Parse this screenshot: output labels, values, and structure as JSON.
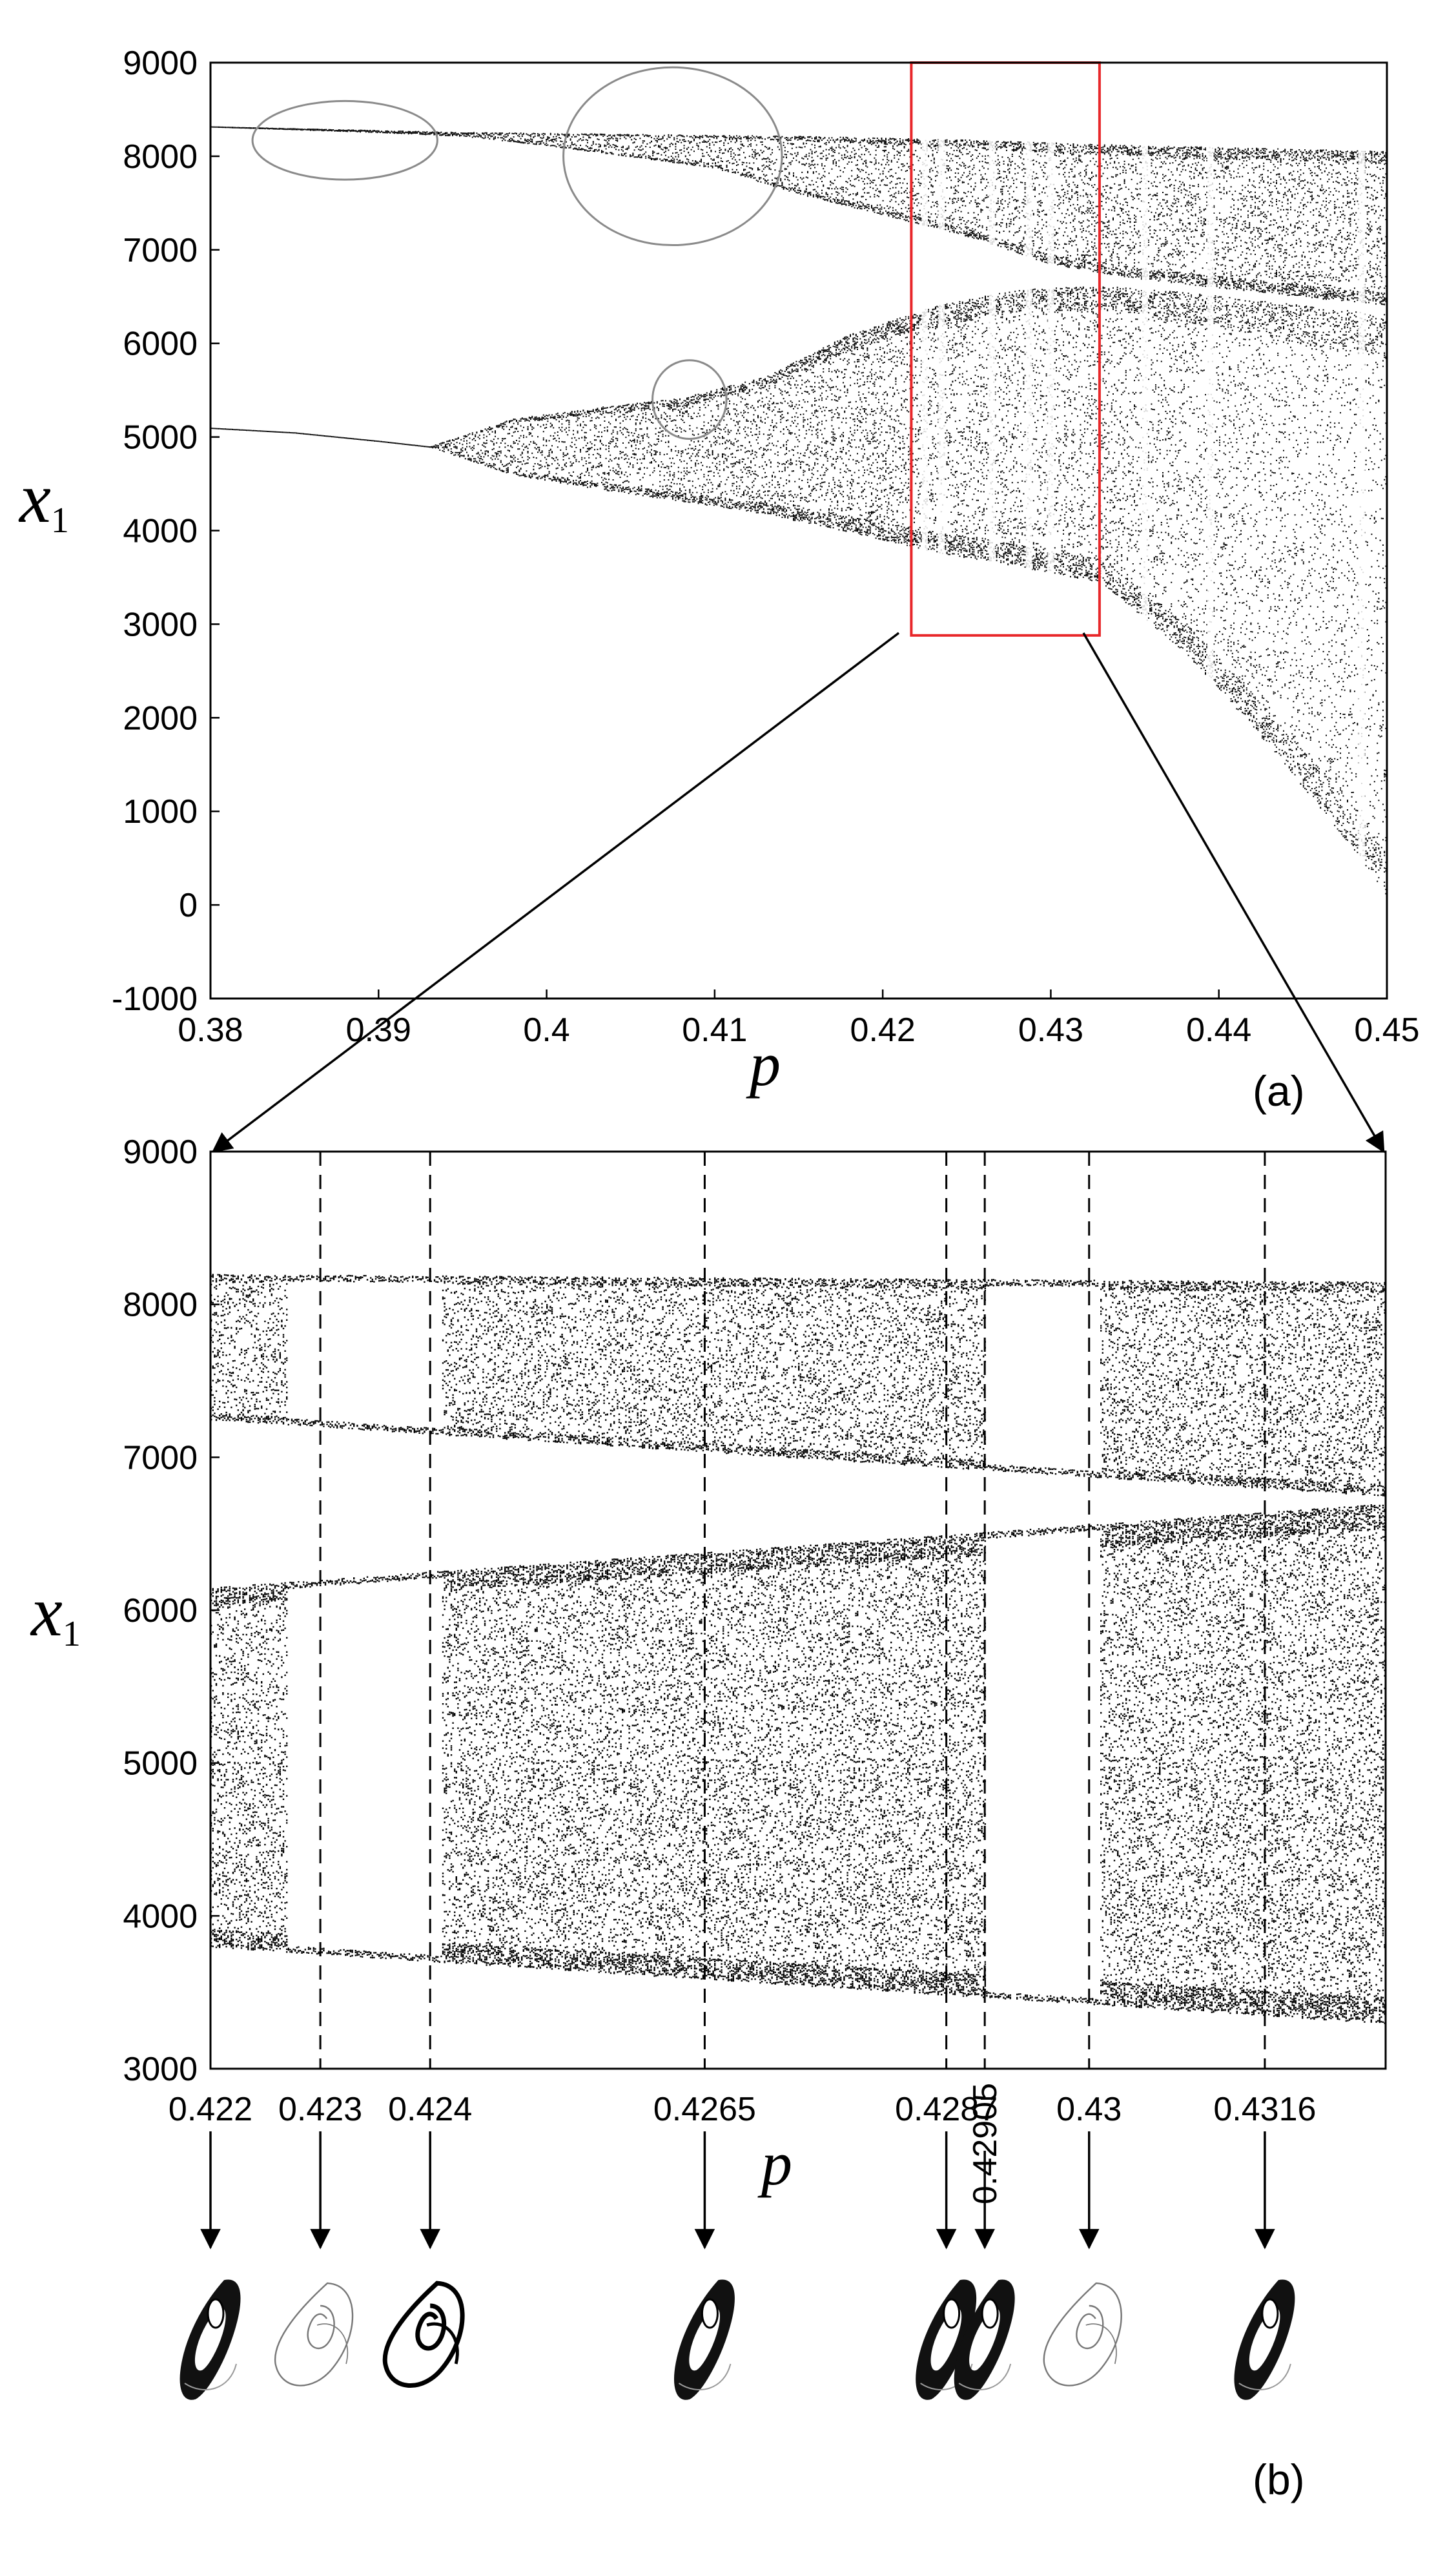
{
  "chart_data": [
    {
      "type": "scatter",
      "panel": "(a)",
      "xlabel": "p",
      "ylabel_main": "x",
      "ylabel_sub": "1",
      "xlim": [
        0.38,
        0.45
      ],
      "ylim": [
        -1000,
        9000
      ],
      "xticks": [
        "0.38",
        "0.39",
        "0.4",
        "0.41",
        "0.42",
        "0.43",
        "0.44",
        "0.45"
      ],
      "xtick_values": [
        0.38,
        0.39,
        0.4,
        0.41,
        0.42,
        0.43,
        0.44,
        0.45
      ],
      "yticks": [
        "9000",
        "8000",
        "7000",
        "6000",
        "5000",
        "4000",
        "3000",
        "2000",
        "1000",
        "0",
        "-1000"
      ],
      "ytick_values": [
        9000,
        8000,
        7000,
        6000,
        5000,
        4000,
        3000,
        2000,
        1000,
        0,
        -1000
      ],
      "branches": [
        {
          "name": "upper",
          "x": [
            0.38,
            0.385,
            0.39,
            0.395,
            0.4,
            0.405,
            0.41,
            0.415,
            0.42,
            0.425,
            0.43,
            0.435,
            0.44,
            0.445,
            0.451
          ],
          "lo": [
            8320,
            8290,
            8260,
            8220,
            8120,
            8000,
            7880,
            7600,
            7380,
            7150,
            6850,
            6700,
            6600,
            6500,
            6400
          ],
          "hi": [
            8320,
            8300,
            8280,
            8260,
            8250,
            8240,
            8230,
            8220,
            8200,
            8180,
            8150,
            8120,
            8100,
            8080,
            8050
          ]
        },
        {
          "name": "lower",
          "x": [
            0.38,
            0.385,
            0.39,
            0.393,
            0.398,
            0.403,
            0.408,
            0.413,
            0.418,
            0.423,
            0.428,
            0.433,
            0.438,
            0.443,
            0.448,
            0.451
          ],
          "lo": [
            5100,
            5050,
            4960,
            4900,
            4600,
            4450,
            4320,
            4180,
            3990,
            3780,
            3620,
            3450,
            2700,
            1700,
            600,
            -150
          ],
          "hi": [
            5100,
            5050,
            4960,
            4900,
            5200,
            5320,
            5420,
            5650,
            6100,
            6400,
            6580,
            6620,
            6550,
            6450,
            6350,
            6300
          ]
        }
      ],
      "circled_regions": [
        {
          "cx": 0.388,
          "cy": 8170,
          "rx": 0.0055,
          "ry": 420
        },
        {
          "cx": 0.4075,
          "cy": 8000,
          "rx": 0.0065,
          "ry": 950
        },
        {
          "cx": 0.4085,
          "cy": 5400,
          "rx": 0.0022,
          "ry": 420
        }
      ],
      "zoom_box": {
        "x": [
          0.4217,
          0.4329
        ],
        "y": [
          2880,
          9000
        ],
        "color": "#e8272a"
      },
      "periodic_windows": [
        0.4225,
        0.4235,
        0.4265,
        0.4287,
        0.43,
        0.4356,
        0.4395,
        0.4485
      ]
    },
    {
      "type": "scatter",
      "panel": "(b)",
      "xlabel": "p",
      "ylabel_main": "x",
      "ylabel_sub": "1",
      "xlim": [
        0.422,
        0.4327
      ],
      "ylim": [
        3000,
        9000
      ],
      "yticks": [
        "9000",
        "8000",
        "7000",
        "6000",
        "5000",
        "4000",
        "3000"
      ],
      "ytick_values": [
        9000,
        8000,
        7000,
        6000,
        5000,
        4000,
        3000
      ],
      "xticks": [
        "0.422",
        "0.423",
        "0.424",
        "0.4265",
        "0.4287",
        "0.42905",
        "0.43",
        "0.4316"
      ],
      "xtick_values": [
        0.422,
        0.423,
        0.424,
        0.4265,
        0.4287,
        0.42905,
        0.43,
        0.4316
      ],
      "marked_values": [
        0.423,
        0.424,
        0.4265,
        0.4287,
        0.42905,
        0.43,
        0.4316
      ],
      "bands": [
        {
          "name": "top-band",
          "x": [
            0.422,
            0.4327
          ],
          "lo": [
            7250,
            6750
          ],
          "hi": [
            8200,
            8150
          ]
        },
        {
          "name": "lower-band",
          "x": [
            0.422,
            0.4327
          ],
          "lo": [
            3800,
            3300
          ],
          "hi": [
            6150,
            6700
          ]
        }
      ],
      "periodic_windows": [
        [
          0.4227,
          0.4241
        ],
        [
          0.42905,
          0.4301
        ]
      ],
      "attractors": [
        {
          "p": "0.422",
          "style": "chaotic"
        },
        {
          "p": "0.423",
          "style": "periodic"
        },
        {
          "p": "0.424",
          "style": "periodic-bold"
        },
        {
          "p": "0.4265",
          "style": "chaotic"
        },
        {
          "p": "0.4287",
          "style": "chaotic"
        },
        {
          "p": "0.42905",
          "style": "chaotic"
        },
        {
          "p": "0.43",
          "style": "periodic"
        },
        {
          "p": "0.4316",
          "style": "chaotic"
        }
      ]
    }
  ],
  "panel_labels": {
    "a": "(a)",
    "b": "(b)"
  }
}
